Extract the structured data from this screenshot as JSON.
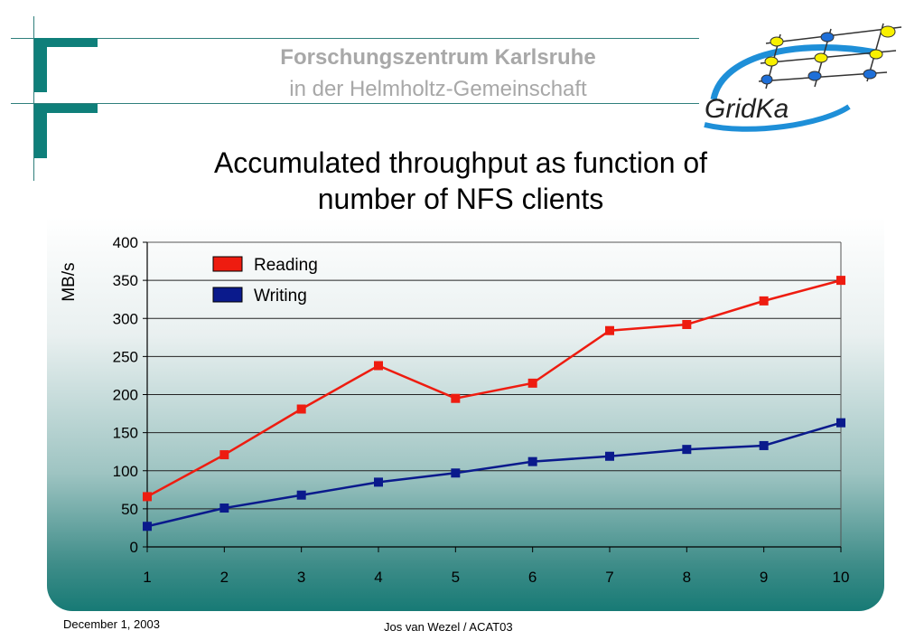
{
  "header": {
    "org_line1": "Forschungszentrum Karlsruhe",
    "org_line2": "in der Helmholtz-Gemeinschaft",
    "logo_text": "GridKa"
  },
  "slide": {
    "title_line1": "Accumulated throughput as function of",
    "title_line2": "number of NFS clients"
  },
  "footer": {
    "date": "December 1, 2003",
    "author": "Jos van Wezel / ACAT03"
  },
  "chart_data": {
    "type": "line",
    "title": "",
    "xlabel": "",
    "ylabel": "MB/s",
    "x": [
      1,
      2,
      3,
      4,
      5,
      6,
      7,
      8,
      9,
      10
    ],
    "ylim": [
      0,
      400
    ],
    "yticks": [
      0,
      50,
      100,
      150,
      200,
      250,
      300,
      350,
      400
    ],
    "grid": true,
    "legend_position": "top-left",
    "series": [
      {
        "name": "Reading",
        "color": "#ee1c10",
        "values": [
          66,
          121,
          181,
          238,
          195,
          215,
          284,
          292,
          323,
          350
        ]
      },
      {
        "name": "Writing",
        "color": "#0a1a8c",
        "values": [
          27,
          51,
          68,
          85,
          97,
          112,
          119,
          128,
          133,
          163
        ]
      }
    ]
  }
}
